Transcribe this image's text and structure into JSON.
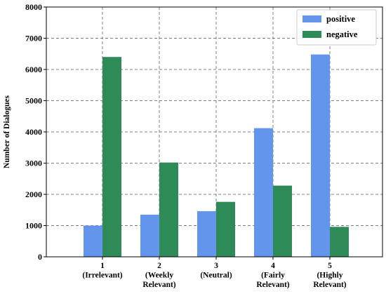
{
  "chart_data": {
    "type": "bar",
    "categories": [
      [
        "1",
        "(Irrelevant)"
      ],
      [
        "2",
        "(Weekly",
        "Relevant)"
      ],
      [
        "3",
        "(Neutral)"
      ],
      [
        "4",
        "(Fairly",
        "Relevant)"
      ],
      [
        "5",
        "(Highly",
        "Relevant)"
      ]
    ],
    "series": [
      {
        "name": "positive",
        "color": "#6495ED",
        "values": [
          1000,
          1350,
          1460,
          4120,
          6480
        ]
      },
      {
        "name": "negative",
        "color": "#2E8B57",
        "values": [
          6400,
          3020,
          1760,
          2280,
          960
        ]
      }
    ],
    "ylabel": "Number of Dialogues",
    "xlabel": "",
    "ylim": [
      0,
      8000
    ],
    "yticks": [
      0,
      1000,
      2000,
      3000,
      4000,
      5000,
      6000,
      7000,
      8000
    ],
    "grid": true,
    "grid_style": "dashed",
    "legend_position": "top-right"
  }
}
